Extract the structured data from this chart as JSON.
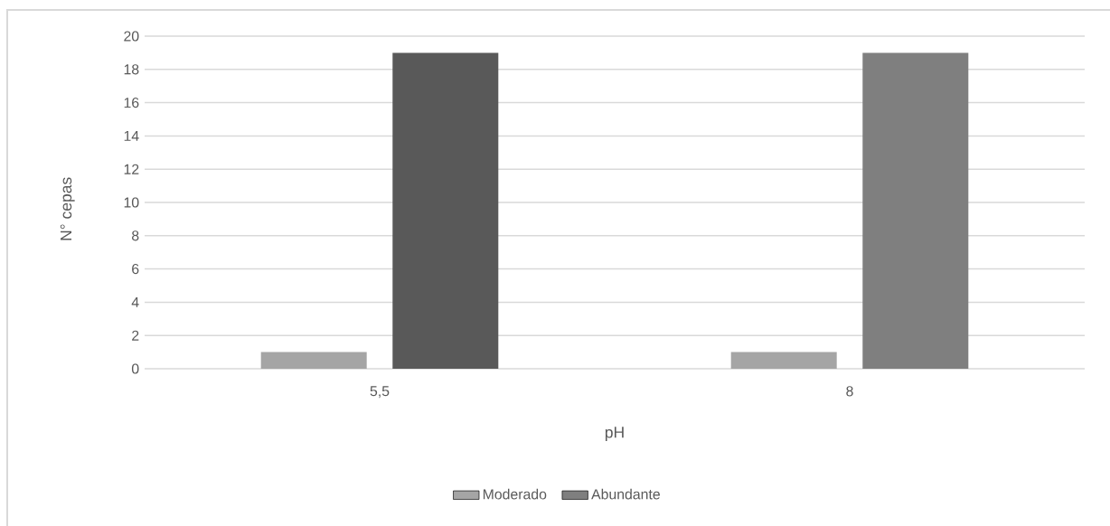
{
  "chart_data": {
    "type": "bar",
    "xlabel": "pH",
    "ylabel": "N° cepas",
    "categories": [
      "5,5",
      "8"
    ],
    "series": [
      {
        "name": "Moderado",
        "color": "#a5a5a5",
        "values": [
          1,
          1
        ]
      },
      {
        "name": "Abundante",
        "color": "#7f7f7f",
        "colors": [
          "#595959",
          "#7f7f7f"
        ],
        "values": [
          19,
          19
        ]
      }
    ],
    "ylim": [
      0,
      20
    ],
    "yticks": [
      0,
      2,
      4,
      6,
      8,
      10,
      12,
      14,
      16,
      18,
      20
    ],
    "grid": "y",
    "legend": "bottom"
  }
}
